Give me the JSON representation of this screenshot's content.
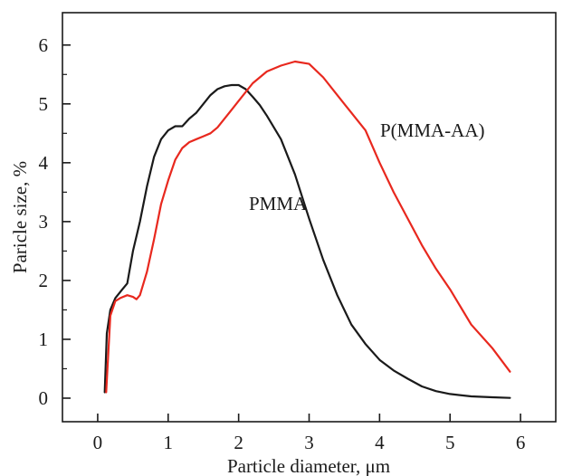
{
  "chart_data": {
    "type": "line",
    "title": "",
    "xlabel": "Particle diameter, μm",
    "ylabel": "Paricle size, %",
    "xlim": [
      -0.5,
      6.5
    ],
    "ylim": [
      -0.4,
      6.55
    ],
    "x_ticks": [
      0,
      1,
      2,
      3,
      4,
      5,
      6
    ],
    "y_ticks": [
      0,
      1,
      2,
      3,
      4,
      5,
      6
    ],
    "grid": false,
    "series": [
      {
        "name": "PMMA",
        "color": "#1a1a1a",
        "x": [
          0.1,
          0.13,
          0.18,
          0.25,
          0.35,
          0.42,
          0.5,
          0.6,
          0.7,
          0.8,
          0.9,
          1.0,
          1.1,
          1.2,
          1.3,
          1.4,
          1.5,
          1.6,
          1.7,
          1.8,
          1.9,
          2.0,
          2.1,
          2.2,
          2.3,
          2.4,
          2.6,
          2.8,
          3.0,
          3.2,
          3.4,
          3.6,
          3.8,
          4.0,
          4.2,
          4.4,
          4.6,
          4.8,
          5.0,
          5.3,
          5.6,
          5.85
        ],
        "y": [
          0.1,
          1.1,
          1.5,
          1.7,
          1.85,
          1.95,
          2.5,
          3.0,
          3.6,
          4.1,
          4.4,
          4.55,
          4.62,
          4.62,
          4.75,
          4.85,
          5.0,
          5.15,
          5.25,
          5.3,
          5.32,
          5.32,
          5.25,
          5.12,
          4.98,
          4.8,
          4.4,
          3.8,
          3.05,
          2.35,
          1.75,
          1.25,
          0.92,
          0.65,
          0.47,
          0.33,
          0.2,
          0.12,
          0.07,
          0.03,
          0.015,
          0.005
        ]
      },
      {
        "name": "P(MMA-AA)",
        "color": "#e8281e",
        "x": [
          0.12,
          0.18,
          0.25,
          0.32,
          0.42,
          0.5,
          0.55,
          0.6,
          0.7,
          0.8,
          0.9,
          1.0,
          1.1,
          1.2,
          1.3,
          1.4,
          1.5,
          1.6,
          1.7,
          1.8,
          1.9,
          2.0,
          2.2,
          2.4,
          2.6,
          2.8,
          3.0,
          3.2,
          3.4,
          3.6,
          3.8,
          4.0,
          4.2,
          4.4,
          4.6,
          4.8,
          5.0,
          5.3,
          5.6,
          5.85
        ],
        "y": [
          0.1,
          1.4,
          1.65,
          1.7,
          1.75,
          1.72,
          1.68,
          1.75,
          2.15,
          2.7,
          3.3,
          3.7,
          4.05,
          4.25,
          4.35,
          4.4,
          4.45,
          4.5,
          4.6,
          4.75,
          4.9,
          5.05,
          5.35,
          5.55,
          5.65,
          5.72,
          5.68,
          5.45,
          5.15,
          4.85,
          4.55,
          4.0,
          3.5,
          3.05,
          2.6,
          2.2,
          1.85,
          1.25,
          0.85,
          0.45
        ]
      }
    ]
  }
}
